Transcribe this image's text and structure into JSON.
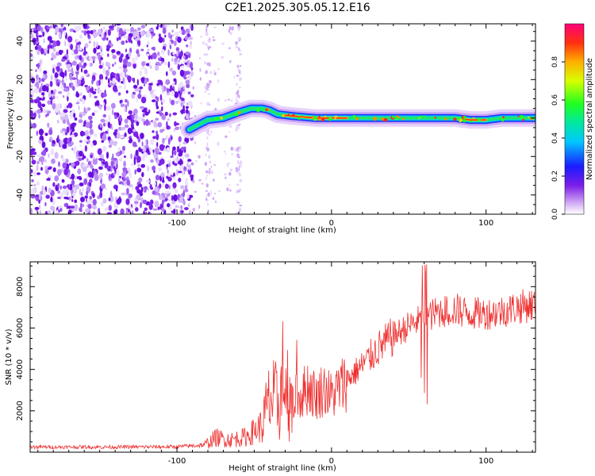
{
  "figure_title": "C2E1.2025.305.05.12.E16",
  "colors": {
    "signal": "#ef3030",
    "noise": "#7a18e6",
    "frame": "#000000"
  },
  "chart_data": [
    {
      "type": "heatmap",
      "title": "C2E1.2025.305.05.12.E16",
      "xlabel": "Height of straight line (km)",
      "ylabel": "Frequency (Hz)",
      "xlim": [
        -195,
        132
      ],
      "ylim": [
        -50,
        49
      ],
      "x_ticks": [
        -100,
        0,
        100
      ],
      "y_ticks": [
        -40,
        -20,
        0,
        20,
        40
      ],
      "colorbar": {
        "label": "Normalized spectral amplitude",
        "range": [
          0,
          1
        ],
        "ticks": [
          0.0,
          0.2,
          0.4,
          0.6,
          0.8
        ],
        "tick_labels": [
          "0.0",
          "0.2",
          "0.4",
          "0.6",
          "0.8"
        ]
      },
      "noise_region_x": [
        -195,
        -90
      ],
      "signal_track": {
        "x": [
          -92,
          -85,
          -80,
          -70,
          -60,
          -52,
          -45,
          -40,
          -35,
          -25,
          -10,
          0,
          20,
          40,
          60,
          80,
          90,
          100,
          110,
          120,
          132
        ],
        "freq_hz": [
          -6,
          -3,
          -1,
          0,
          3,
          5,
          5,
          4,
          2,
          1,
          0,
          0,
          0,
          0,
          0,
          0,
          -1,
          -1,
          0,
          0,
          0
        ]
      }
    },
    {
      "type": "line",
      "xlabel": "Height of straight line (km)",
      "ylabel": "SNR (10 * v/v)",
      "xlim": [
        -195,
        132
      ],
      "ylim": [
        0,
        9200
      ],
      "x_ticks": [
        -100,
        0,
        100
      ],
      "y_ticks": [
        2000,
        4000,
        6000,
        8000
      ],
      "series": [
        {
          "name": "SNR",
          "x": [
            -195,
            -150,
            -100,
            -82,
            -75,
            -65,
            -55,
            -45,
            -40,
            -35,
            -30,
            -25,
            -20,
            -15,
            -10,
            -5,
            0,
            10,
            20,
            30,
            40,
            50,
            55,
            60,
            70,
            80,
            90,
            100,
            110,
            120,
            132
          ],
          "y": [
            250,
            250,
            260,
            350,
            700,
            600,
            750,
            1300,
            2500,
            2400,
            3300,
            2600,
            2700,
            3200,
            2700,
            3100,
            2700,
            3500,
            4200,
            5000,
            5600,
            6100,
            6300,
            6500,
            6800,
            6900,
            6700,
            6700,
            6800,
            7000,
            7150
          ]
        }
      ]
    }
  ]
}
